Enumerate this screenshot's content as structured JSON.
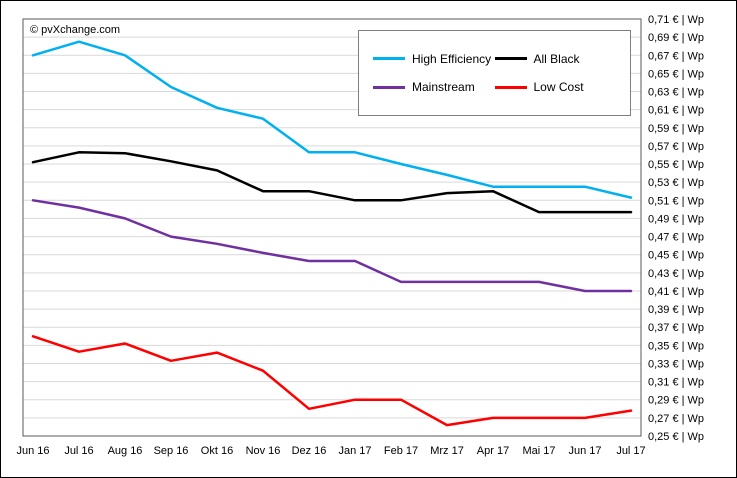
{
  "chart_data": {
    "type": "line",
    "copyright": "© pvXchange.com",
    "categories": [
      "Jun 16",
      "Jul 16",
      "Aug 16",
      "Sep 16",
      "Okt 16",
      "Nov 16",
      "Dez 16",
      "Jan 17",
      "Feb 17",
      "Mrz 17",
      "Apr 17",
      "Mai 17",
      "Jun 17",
      "Jul 17"
    ],
    "series": [
      {
        "name": "High Efficiency",
        "color": "#00B0F0",
        "values": [
          0.67,
          0.685,
          0.67,
          0.635,
          0.612,
          0.6,
          0.563,
          0.563,
          0.55,
          0.538,
          0.525,
          0.525,
          0.525,
          0.513
        ]
      },
      {
        "name": "All Black",
        "color": "#000000",
        "values": [
          0.552,
          0.563,
          0.562,
          0.553,
          0.543,
          0.52,
          0.52,
          0.51,
          0.51,
          0.518,
          0.52,
          0.497,
          0.497,
          0.497
        ]
      },
      {
        "name": "Mainstream",
        "color": "#7030A0",
        "values": [
          0.51,
          0.502,
          0.49,
          0.47,
          0.462,
          0.452,
          0.443,
          0.443,
          0.42,
          0.42,
          0.42,
          0.42,
          0.41,
          0.41
        ]
      },
      {
        "name": "Low Cost",
        "color": "#FF0000",
        "values": [
          0.36,
          0.343,
          0.352,
          0.333,
          0.342,
          0.322,
          0.28,
          0.29,
          0.29,
          0.262,
          0.27,
          0.27,
          0.27,
          0.278
        ]
      }
    ],
    "ylim": [
      0.25,
      0.71
    ],
    "y_tick_step": 0.02,
    "y_ticks": [
      "0,71 € | Wp",
      "0,69 € | Wp",
      "0,67 € | Wp",
      "0,65 € | Wp",
      "0,63 € | Wp",
      "0,61 € | Wp",
      "0,59 € | Wp",
      "0,57 € | Wp",
      "0,55 € | Wp",
      "0,53 € | Wp",
      "0,51 € | Wp",
      "0,49 € | Wp",
      "0,47 € | Wp",
      "0,45 € | Wp",
      "0,43 € | Wp",
      "0,41 € | Wp",
      "0,39 € | Wp",
      "0,37 € | Wp",
      "0,35 € | Wp",
      "0,33 € | Wp",
      "0,31 € | Wp",
      "0,29 € | Wp",
      "0,27 € | Wp",
      "0,25 € | Wp"
    ],
    "grid": true,
    "grid_color": "#d9d9d9",
    "axis_color": "#595959",
    "legend_position": "top-center"
  }
}
